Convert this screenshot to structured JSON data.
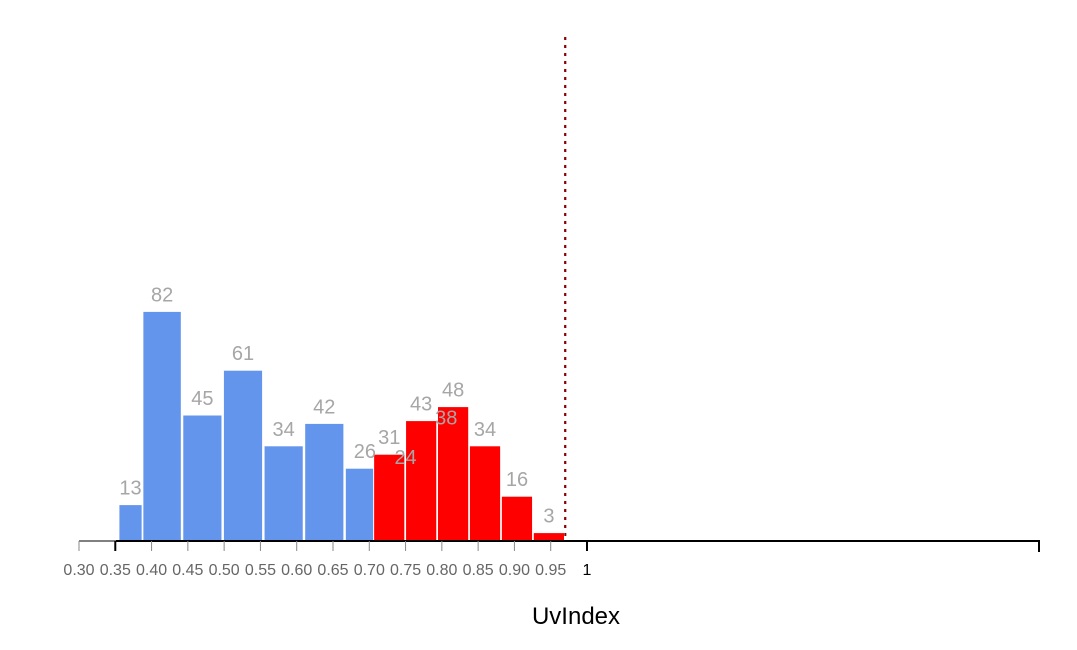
{
  "chart_data": {
    "type": "histogram",
    "xlabel": "UvIndex",
    "colors": {
      "blue": "#6495ED",
      "red": "#FF0000",
      "reference_line": "#8B0000",
      "label": "#a6a6a6"
    },
    "reference_line": {
      "x": 0.97,
      "style": "dotted"
    },
    "blue_axis": {
      "range": [
        0.3,
        1.0
      ],
      "ticks": [
        "0.30",
        "0.35",
        "0.40",
        "0.45",
        "0.50",
        "0.55",
        "0.60",
        "0.65",
        "0.70",
        "0.75",
        "0.80",
        "0.85",
        "0.90",
        "0.95",
        "1"
      ]
    },
    "series": [
      {
        "color": "#6495ED",
        "bins": [
          {
            "x0": 0.355,
            "x1": 0.387,
            "value": 13
          },
          {
            "x0": 0.388,
            "x1": 0.441,
            "value": 82
          },
          {
            "x0": 0.443,
            "x1": 0.497,
            "value": 45
          },
          {
            "x0": 0.499,
            "x1": 0.553,
            "value": 61
          },
          {
            "x0": 0.555,
            "x1": 0.609,
            "value": 34
          },
          {
            "x0": 0.611,
            "x1": 0.665,
            "value": 42
          },
          {
            "x0": 0.667,
            "x1": 0.721,
            "value": 26
          },
          {
            "x0": 0.723,
            "x1": 0.777,
            "value": 24
          },
          {
            "x0": 0.779,
            "x1": 0.833,
            "value": 38
          }
        ]
      },
      {
        "color": "#FF0000",
        "bins": [
          {
            "x0": 0.706,
            "x1": 0.749,
            "value": 31
          },
          {
            "x0": 0.75,
            "x1": 0.793,
            "value": 43
          },
          {
            "x0": 0.794,
            "x1": 0.837,
            "value": 48
          },
          {
            "x0": 0.838,
            "x1": 0.881,
            "value": 34
          },
          {
            "x0": 0.882,
            "x1": 0.925,
            "value": 16
          },
          {
            "x0": 0.926,
            "x1": 0.969,
            "value": 3
          }
        ]
      }
    ]
  }
}
